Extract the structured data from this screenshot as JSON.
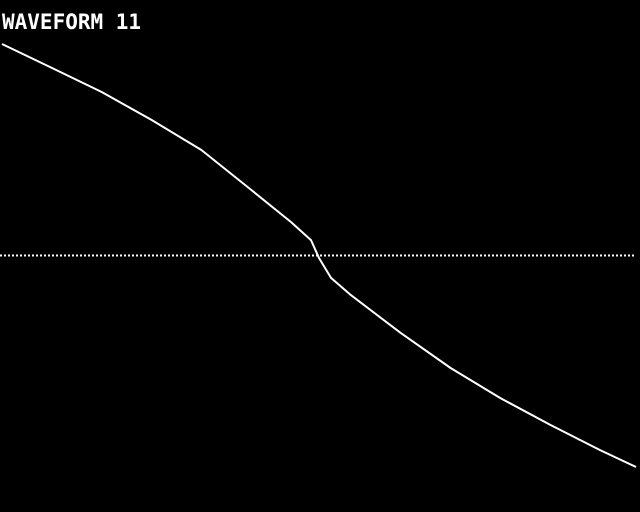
{
  "chart_data": {
    "type": "line",
    "title": "WAVEFORM 11",
    "x": [
      0,
      50,
      100,
      150,
      200,
      250,
      290,
      310,
      318,
      330,
      350,
      400,
      450,
      500,
      550,
      600,
      636
    ],
    "series": [
      {
        "color": "#ffffff",
        "values": [
          1.0,
          0.887,
          0.773,
          0.641,
          0.499,
          0.31,
          0.158,
          0.073,
          -0.012,
          -0.106,
          -0.187,
          -0.366,
          -0.532,
          -0.674,
          -0.801,
          -0.92,
          -1.0
        ]
      }
    ],
    "xlim": [
      0,
      636
    ],
    "ylim": [
      -1,
      1
    ]
  }
}
